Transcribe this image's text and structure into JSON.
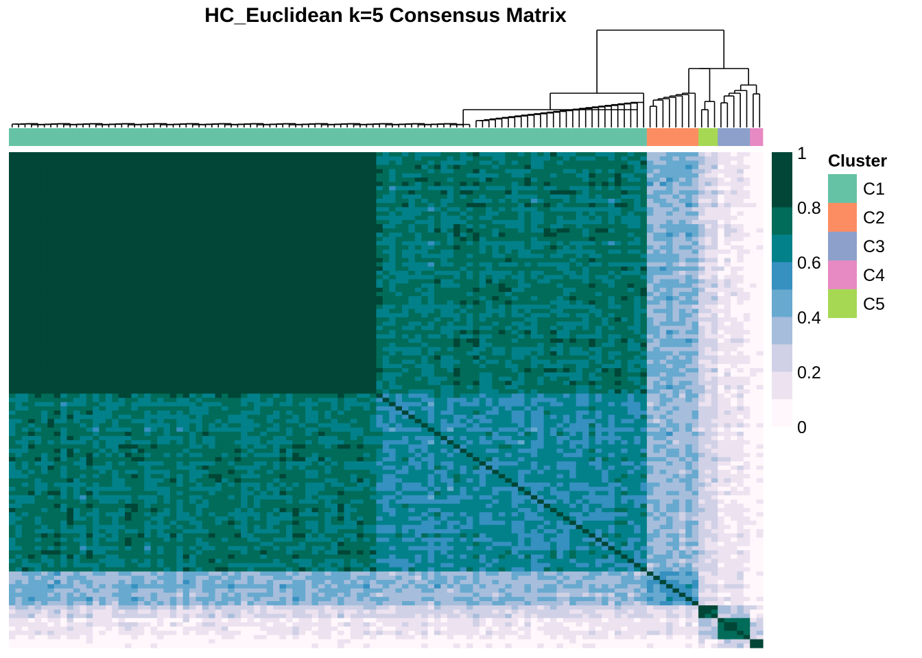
{
  "chart_data": {
    "type": "heatmap",
    "title": "HC_Euclidean k=5 Consensus Matrix",
    "matrix_size": 117,
    "cluster_order": [
      "C1",
      "C2",
      "C5",
      "C3",
      "C4"
    ],
    "cluster_sizes": {
      "C1": 99,
      "C2": 8,
      "C5": 3,
      "C3": 5,
      "C4": 2
    },
    "value_range": [
      0,
      1
    ],
    "colorbar": {
      "ticks": [
        "1",
        "0.8",
        "0.6",
        "0.4",
        "0.2",
        "0"
      ],
      "bins": [
        {
          "lower": 0.0,
          "upper": 0.1,
          "color": "#FFF7FB"
        },
        {
          "lower": 0.1,
          "upper": 0.2,
          "color": "#ECE2F0"
        },
        {
          "lower": 0.2,
          "upper": 0.3,
          "color": "#D0D1E6"
        },
        {
          "lower": 0.3,
          "upper": 0.4,
          "color": "#A6BDDB"
        },
        {
          "lower": 0.4,
          "upper": 0.5,
          "color": "#67A9CF"
        },
        {
          "lower": 0.5,
          "upper": 0.6,
          "color": "#3690C0"
        },
        {
          "lower": 0.6,
          "upper": 0.7,
          "color": "#02818A"
        },
        {
          "lower": 0.7,
          "upper": 0.8,
          "color": "#016C59"
        },
        {
          "lower": 0.8,
          "upper": 1.0,
          "color": "#014636"
        }
      ]
    },
    "block_consensus": {
      "note_rows_order": "C1a = first 57 C1 samples (tight core), C1b = remaining 42 C1 samples",
      "groups": [
        "C1a",
        "C1b",
        "C2",
        "C5",
        "C3",
        "C4"
      ],
      "sizes": [
        57,
        42,
        8,
        3,
        5,
        2
      ],
      "values": [
        [
          0.95,
          0.72,
          0.42,
          0.22,
          0.1,
          0.05
        ],
        [
          0.72,
          0.62,
          0.4,
          0.22,
          0.12,
          0.06
        ],
        [
          0.42,
          0.4,
          0.55,
          0.2,
          0.15,
          0.08
        ],
        [
          0.22,
          0.22,
          0.2,
          0.85,
          0.3,
          0.12
        ],
        [
          0.1,
          0.12,
          0.15,
          0.3,
          0.75,
          0.25
        ],
        [
          0.05,
          0.06,
          0.08,
          0.12,
          0.25,
          0.9
        ]
      ]
    },
    "legend": {
      "title": "Cluster",
      "placement": "right",
      "items": [
        {
          "label": "C1",
          "color": "#66C2A5"
        },
        {
          "label": "C2",
          "color": "#FC8D62"
        },
        {
          "label": "C3",
          "color": "#8DA0CB"
        },
        {
          "label": "C4",
          "color": "#E78AC3"
        },
        {
          "label": "C5",
          "color": "#A6D854"
        }
      ]
    }
  }
}
